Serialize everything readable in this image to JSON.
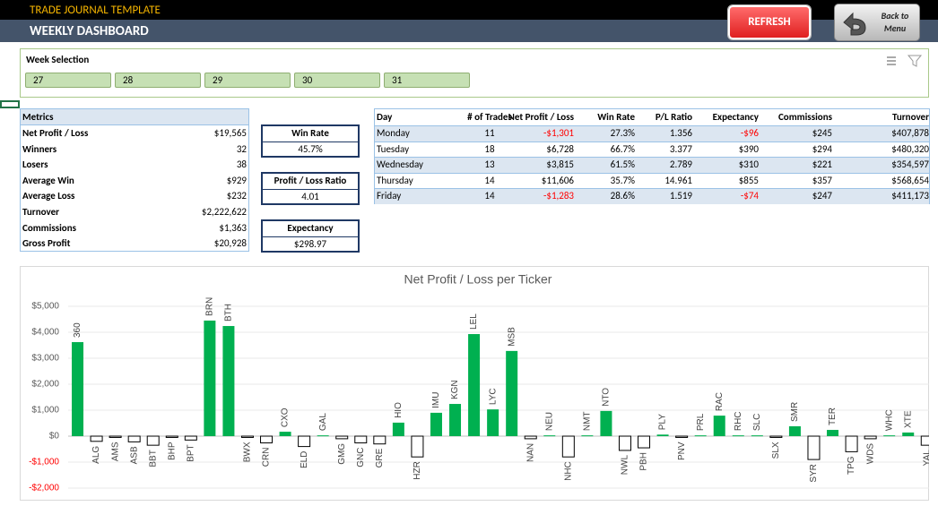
{
  "header": {
    "app_title": "TRADE JOURNAL TEMPLATE",
    "page_title": "WEEKLY DASHBOARD",
    "refresh_button": "REFRESH",
    "back_button": "Back to Menu"
  },
  "week_selection": {
    "title": "Week Selection",
    "weeks": [
      "27",
      "28",
      "29",
      "30",
      "31"
    ]
  },
  "metrics": {
    "header": "Metrics",
    "rows": [
      [
        "Net Profit / Loss",
        "$19,565"
      ],
      [
        "Winners",
        "32"
      ],
      [
        "Losers",
        "38"
      ],
      [
        "Average Win",
        "$929"
      ],
      [
        "Average Loss",
        "$232"
      ],
      [
        "Turnover",
        "$2,222,622"
      ],
      [
        "Commissions",
        "$1,363"
      ],
      [
        "Gross Profit",
        "$20,928"
      ]
    ]
  },
  "kpis": [
    {
      "label": "Win Rate",
      "value": "45.7%"
    },
    {
      "label": "Profit / Loss Ratio",
      "value": "4.01"
    },
    {
      "label": "Expectancy",
      "value": "$298.97"
    }
  ],
  "day_table": {
    "columns": [
      "Day",
      "# of Trades",
      "Net Profit / Loss",
      "Win Rate",
      "P/L Ratio",
      "Expectancy",
      "Commissions",
      "Turnover"
    ],
    "rows": [
      [
        "Monday",
        "11",
        "-$1,301",
        "27.3%",
        "1.356",
        "-$96",
        "$245",
        "$407,878"
      ],
      [
        "Tuesday",
        "18",
        "$6,728",
        "66.7%",
        "3.377",
        "$390",
        "$294",
        "$480,320"
      ],
      [
        "Wednesday",
        "13",
        "$3,815",
        "61.5%",
        "2.789",
        "$310",
        "$221",
        "$354,597"
      ],
      [
        "Thursday",
        "14",
        "$11,606",
        "35.7%",
        "14.961",
        "$855",
        "$357",
        "$568,654"
      ],
      [
        "Friday",
        "14",
        "-$1,283",
        "28.6%",
        "1.519",
        "-$74",
        "$247",
        "$411,173"
      ]
    ]
  },
  "chart_data": {
    "type": "bar",
    "title": "Net Profit / Loss per Ticker",
    "categories": [
      "360",
      "ALG",
      "AMS",
      "ASB",
      "BBT",
      "BHP",
      "BPT",
      "BRN",
      "BTH",
      "BWX",
      "CRN",
      "CXO",
      "ELD",
      "GAL",
      "GMG",
      "GNC",
      "GRE",
      "HIO",
      "HZR",
      "IMU",
      "KGN",
      "LEL",
      "LYC",
      "MSB",
      "NAN",
      "NEU",
      "NHC",
      "NMT",
      "NTO",
      "NWL",
      "PBH",
      "PLY",
      "PNV",
      "PRL",
      "RAC",
      "RHC",
      "SLC",
      "SLX",
      "SMR",
      "SYR",
      "TER",
      "TPG",
      "WDS",
      "WHC",
      "XTE",
      "YAL"
    ],
    "values": [
      3620,
      -200,
      -50,
      -220,
      -350,
      -50,
      -150,
      4450,
      4240,
      -50,
      -260,
      170,
      -400,
      30,
      -100,
      -260,
      -300,
      520,
      -800,
      900,
      1240,
      3930,
      1030,
      3280,
      -100,
      30,
      -800,
      30,
      970,
      -550,
      -450,
      60,
      -50,
      30,
      790,
      30,
      30,
      -50,
      380,
      -900,
      240,
      -600,
      -100,
      30,
      140,
      -350
    ],
    "positive_color": "#00b050",
    "negative_color": "#ffffff",
    "ylim": [
      -2000,
      5000
    ],
    "yticks": [
      {
        "value": -2000,
        "label": "-$2,000"
      },
      {
        "value": -1000,
        "label": "-$1,000"
      },
      {
        "value": 0,
        "label": "$0"
      },
      {
        "value": 1000,
        "label": "$1,000"
      },
      {
        "value": 2000,
        "label": "$2,000"
      },
      {
        "value": 3000,
        "label": "$3,000"
      },
      {
        "value": 4000,
        "label": "$4,000"
      },
      {
        "value": 5000,
        "label": "$5,000"
      }
    ],
    "grid": true
  }
}
